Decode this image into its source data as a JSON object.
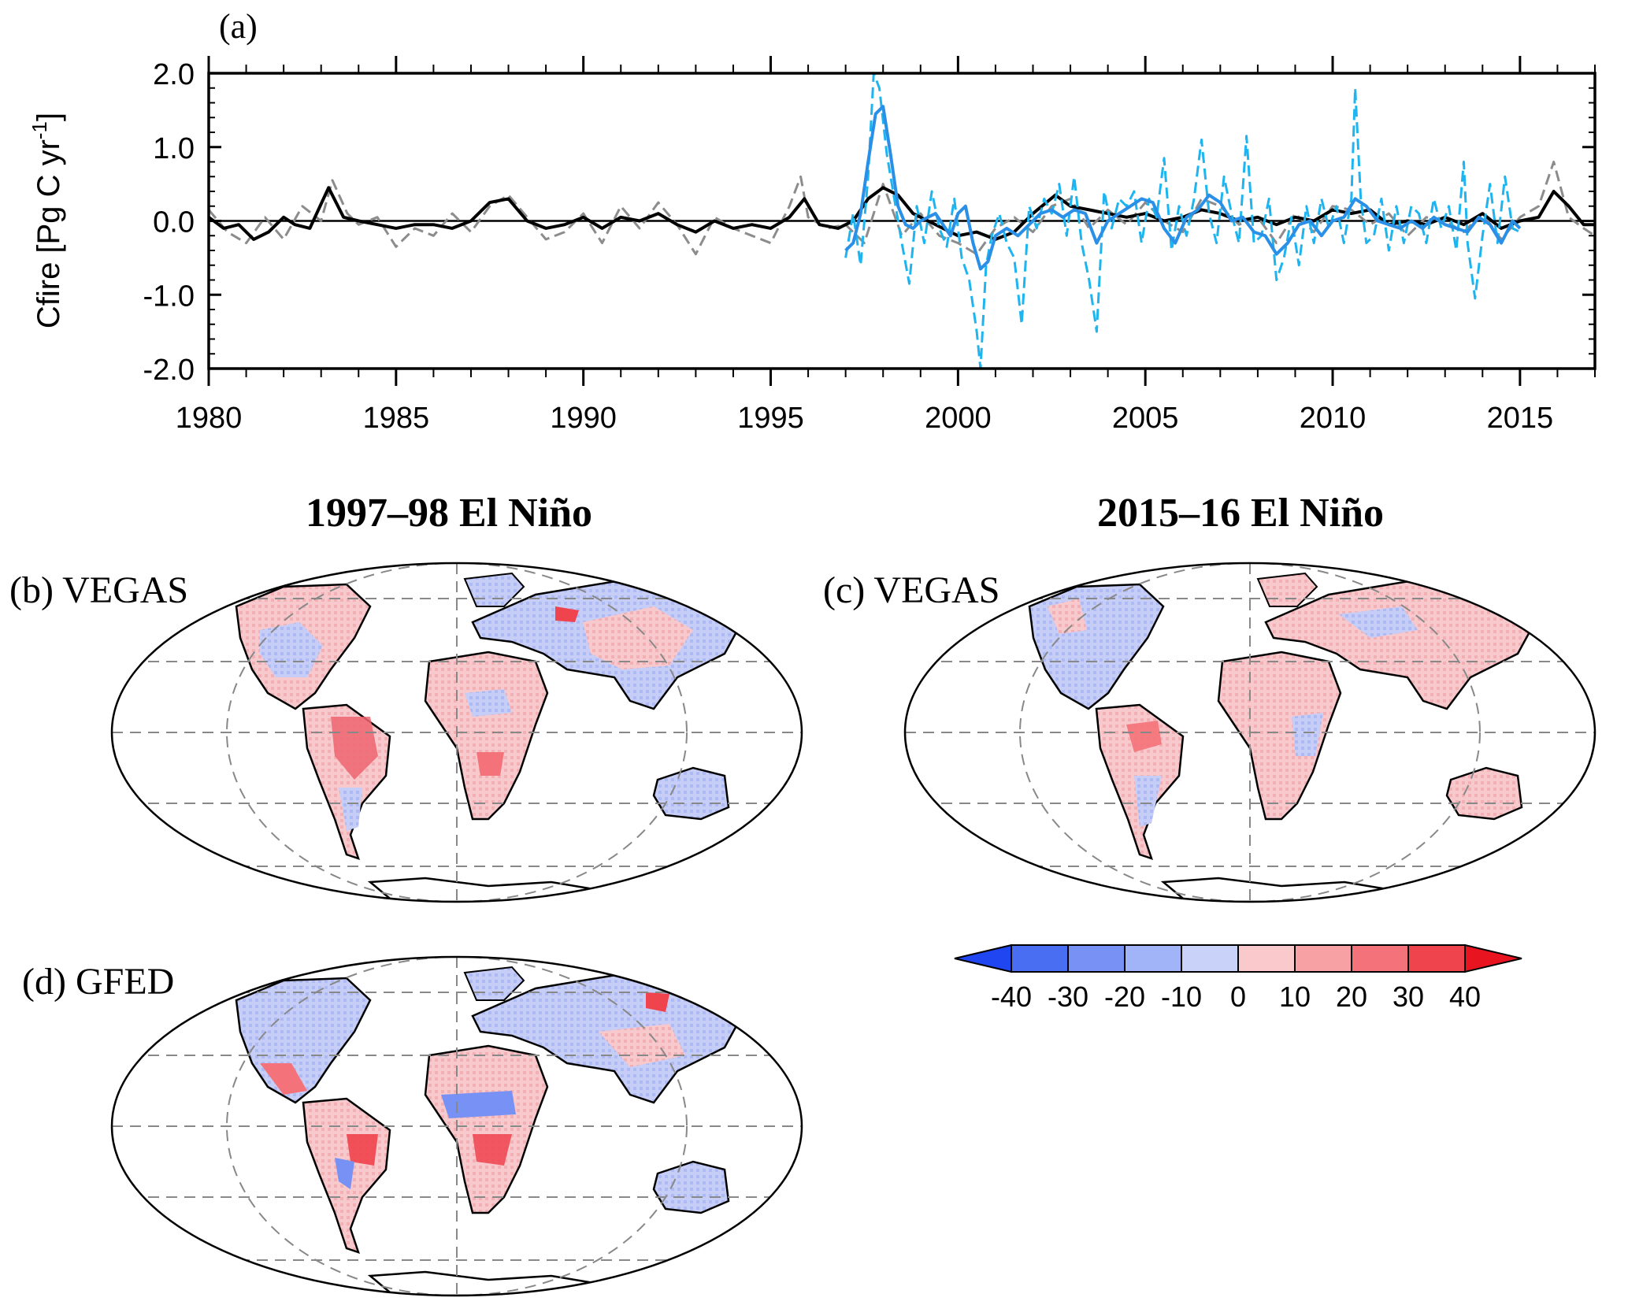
{
  "chart_data": [
    {
      "type": "line",
      "panel_label": "(a)",
      "ylabel": "Cfire [Pg C yr",
      "ylabel_sup": "-1",
      "ylabel_end": "]",
      "xlim": [
        1980,
        2017
      ],
      "ylim": [
        -2.0,
        2.0
      ],
      "xticks": [
        "1980",
        "1985",
        "1990",
        "1995",
        "2000",
        "2005",
        "2010",
        "2015"
      ],
      "yticks": [
        "2.0",
        "1.0",
        "0.0",
        "-1.0",
        "-2.0"
      ],
      "zero_line": true,
      "series": [
        {
          "color": "#8c8c8c",
          "dash": true,
          "width": 3,
          "x": [
            1980.0,
            1980.5,
            1981.0,
            1981.5,
            1982.0,
            1982.5,
            1983.0,
            1983.3,
            1983.7,
            1984.0,
            1984.5,
            1985.0,
            1985.5,
            1986.0,
            1986.5,
            1987.0,
            1987.5,
            1988.0,
            1988.5,
            1989.0,
            1989.5,
            1990.0,
            1990.5,
            1991.0,
            1991.5,
            1992.0,
            1992.5,
            1993.0,
            1993.5,
            1994.0,
            1994.5,
            1995.0,
            1995.5,
            1995.8,
            1996.0,
            1996.5,
            1997.0,
            1997.5,
            1998.0,
            1998.5,
            1999.0,
            1999.5,
            2000.0,
            2000.5,
            2001.0,
            2001.5,
            2002.0,
            2002.5,
            2003.0,
            2003.5,
            2004.0,
            2004.5,
            2005.0,
            2005.5,
            2006.0,
            2006.5,
            2007.0,
            2007.5,
            2008.0,
            2008.5,
            2009.0,
            2009.5,
            2010.0,
            2010.5,
            2011.0,
            2011.5,
            2012.0,
            2012.5,
            2013.0,
            2013.5,
            2014.0,
            2014.5,
            2015.0,
            2015.5,
            2015.9,
            2016.3,
            2016.7,
            2017.0
          ],
          "y": [
            0.15,
            -0.15,
            -0.3,
            0.05,
            -0.25,
            0.2,
            0.0,
            0.55,
            0.1,
            -0.05,
            0.05,
            -0.35,
            -0.1,
            -0.2,
            0.1,
            -0.15,
            0.2,
            0.35,
            0.05,
            -0.25,
            -0.15,
            0.1,
            -0.3,
            0.2,
            -0.1,
            0.25,
            -0.05,
            -0.45,
            0.05,
            -0.1,
            -0.2,
            -0.3,
            0.2,
            0.6,
            0.05,
            -0.1,
            -0.05,
            -0.3,
            0.5,
            -0.2,
            0.1,
            -0.2,
            -0.3,
            -0.45,
            -0.1,
            0.05,
            -0.15,
            0.2,
            0.3,
            -0.1,
            0.15,
            -0.05,
            0.25,
            0.0,
            -0.15,
            0.3,
            0.2,
            -0.05,
            0.05,
            -0.3,
            0.1,
            -0.15,
            0.2,
            0.15,
            -0.05,
            0.1,
            -0.2,
            0.05,
            0.0,
            -0.15,
            0.1,
            -0.25,
            0.05,
            0.2,
            0.8,
            0.05,
            -0.1,
            -0.2
          ]
        },
        {
          "color": "#000000",
          "dash": false,
          "width": 4,
          "x": [
            1980.0,
            1980.4,
            1980.8,
            1981.2,
            1981.6,
            1982.0,
            1982.3,
            1982.7,
            1983.2,
            1983.6,
            1984.0,
            1984.5,
            1985.0,
            1985.5,
            1986.0,
            1986.5,
            1987.0,
            1987.5,
            1988.0,
            1988.5,
            1989.0,
            1989.5,
            1990.0,
            1990.5,
            1991.0,
            1991.5,
            1992.0,
            1992.5,
            1993.0,
            1993.5,
            1994.0,
            1994.5,
            1995.0,
            1995.5,
            1995.9,
            1996.3,
            1996.8,
            1997.2,
            1997.6,
            1998.0,
            1998.4,
            1998.8,
            1999.2,
            1999.6,
            2000.0,
            2000.5,
            2001.0,
            2001.5,
            2002.0,
            2002.6,
            2003.0,
            2003.5,
            2004.0,
            2004.5,
            2005.0,
            2005.5,
            2006.0,
            2006.5,
            2007.0,
            2007.5,
            2008.0,
            2008.5,
            2009.0,
            2009.5,
            2010.0,
            2010.5,
            2011.0,
            2011.5,
            2012.0,
            2012.5,
            2013.0,
            2013.5,
            2014.0,
            2014.5,
            2015.0,
            2015.5,
            2015.9,
            2016.3,
            2016.7,
            2017.0
          ],
          "y": [
            0.05,
            -0.1,
            -0.05,
            -0.25,
            -0.15,
            0.05,
            -0.05,
            -0.1,
            0.45,
            0.05,
            0.0,
            -0.05,
            -0.1,
            -0.05,
            -0.05,
            -0.1,
            0.0,
            0.25,
            0.3,
            0.0,
            -0.1,
            -0.05,
            0.05,
            -0.1,
            0.05,
            0.0,
            0.1,
            -0.05,
            -0.15,
            0.0,
            -0.1,
            -0.05,
            -0.1,
            0.05,
            0.3,
            -0.05,
            -0.1,
            0.0,
            0.3,
            0.45,
            0.35,
            0.1,
            0.0,
            -0.1,
            -0.2,
            -0.15,
            -0.25,
            -0.15,
            0.1,
            0.35,
            0.2,
            0.15,
            0.1,
            0.05,
            0.1,
            0.0,
            0.05,
            0.15,
            0.1,
            0.0,
            0.05,
            -0.05,
            0.05,
            0.0,
            0.15,
            0.1,
            0.15,
            -0.05,
            0.0,
            -0.05,
            0.05,
            -0.05,
            0.1,
            -0.1,
            0.0,
            0.05,
            0.4,
            0.2,
            -0.05,
            -0.05
          ]
        },
        {
          "color": "#1eb4f0",
          "dash": true,
          "width": 3,
          "x": [
            1997.0,
            1997.2,
            1997.4,
            1997.6,
            1997.75,
            1997.9,
            1998.1,
            1998.3,
            1998.5,
            1998.7,
            1998.9,
            1999.1,
            1999.3,
            1999.5,
            1999.7,
            1999.9,
            2000.1,
            2000.3,
            2000.5,
            2000.6,
            2000.75,
            2000.9,
            2001.1,
            2001.3,
            2001.5,
            2001.7,
            2001.9,
            2002.1,
            2002.3,
            2002.5,
            2002.7,
            2002.9,
            2003.1,
            2003.3,
            2003.5,
            2003.7,
            2003.9,
            2004.1,
            2004.3,
            2004.5,
            2004.7,
            2004.9,
            2005.1,
            2005.3,
            2005.5,
            2005.7,
            2005.9,
            2006.1,
            2006.3,
            2006.5,
            2006.7,
            2006.9,
            2007.1,
            2007.3,
            2007.5,
            2007.7,
            2007.9,
            2008.1,
            2008.3,
            2008.5,
            2008.7,
            2008.9,
            2009.1,
            2009.3,
            2009.5,
            2009.7,
            2009.9,
            2010.1,
            2010.3,
            2010.5,
            2010.6,
            2010.75,
            2010.9,
            2011.1,
            2011.3,
            2011.5,
            2011.7,
            2011.9,
            2012.1,
            2012.3,
            2012.5,
            2012.7,
            2012.9,
            2013.1,
            2013.3,
            2013.5,
            2013.6,
            2013.8,
            2014.0,
            2014.2,
            2014.4,
            2014.6,
            2014.8,
            2015.0
          ],
          "y": [
            -0.5,
            0.1,
            -0.6,
            0.6,
            2.0,
            1.8,
            0.9,
            0.3,
            -0.3,
            -0.85,
            0.2,
            -0.3,
            0.4,
            -0.1,
            -0.35,
            0.3,
            -0.5,
            -0.8,
            -1.5,
            -2.0,
            -0.6,
            -0.2,
            0.1,
            -0.3,
            -0.5,
            -1.4,
            0.2,
            -0.1,
            0.3,
            0.1,
            0.5,
            -0.2,
            0.6,
            -0.3,
            -0.8,
            -1.5,
            0.4,
            -0.1,
            0.3,
            0.2,
            0.4,
            -0.3,
            0.3,
            0.05,
            0.85,
            -0.4,
            0.2,
            -0.2,
            0.3,
            1.1,
            0.1,
            -0.3,
            0.6,
            0.1,
            -0.3,
            1.15,
            -0.3,
            -0.2,
            0.3,
            -0.8,
            -0.5,
            0.05,
            -0.6,
            0.2,
            -0.3,
            0.3,
            -0.1,
            0.2,
            -0.3,
            0.3,
            1.8,
            0.3,
            -0.3,
            -0.2,
            0.3,
            -0.4,
            0.2,
            -0.3,
            0.2,
            0.1,
            -0.3,
            0.3,
            -0.1,
            0.2,
            -0.4,
            0.8,
            -0.3,
            -1.05,
            -0.2,
            0.5,
            -0.3,
            0.6,
            -0.1,
            -0.15
          ]
        },
        {
          "color": "#2a8fe6",
          "dash": false,
          "width": 4,
          "x": [
            1997.0,
            1997.2,
            1997.4,
            1997.6,
            1997.8,
            1998.0,
            1998.2,
            1998.4,
            1998.6,
            1998.8,
            1999.0,
            1999.2,
            1999.4,
            1999.6,
            1999.8,
            2000.0,
            2000.2,
            2000.4,
            2000.6,
            2000.8,
            2001.0,
            2001.3,
            2001.6,
            2001.9,
            2002.2,
            2002.5,
            2002.8,
            2003.1,
            2003.4,
            2003.7,
            2004.0,
            2004.3,
            2004.6,
            2004.9,
            2005.2,
            2005.5,
            2005.8,
            2006.1,
            2006.4,
            2006.7,
            2007.0,
            2007.3,
            2007.6,
            2007.9,
            2008.2,
            2008.5,
            2008.8,
            2009.1,
            2009.4,
            2009.7,
            2010.0,
            2010.3,
            2010.6,
            2010.9,
            2011.2,
            2011.5,
            2011.8,
            2012.1,
            2012.4,
            2012.7,
            2013.0,
            2013.3,
            2013.6,
            2013.9,
            2014.2,
            2014.5,
            2014.8,
            2015.0
          ],
          "y": [
            -0.4,
            -0.3,
            0.1,
            0.8,
            1.45,
            1.55,
            0.9,
            0.2,
            -0.05,
            -0.1,
            0.0,
            0.05,
            0.1,
            -0.05,
            -0.2,
            0.1,
            0.2,
            -0.3,
            -0.65,
            -0.55,
            -0.2,
            -0.1,
            -0.2,
            -0.05,
            0.1,
            0.15,
            0.05,
            0.15,
            0.1,
            -0.3,
            0.0,
            0.1,
            0.2,
            0.3,
            0.25,
            -0.1,
            -0.3,
            0.05,
            0.15,
            0.35,
            0.25,
            0.0,
            0.05,
            -0.15,
            -0.2,
            -0.45,
            -0.3,
            -0.05,
            0.0,
            -0.2,
            0.0,
            0.05,
            0.3,
            0.2,
            0.0,
            -0.05,
            -0.1,
            0.0,
            -0.1,
            0.05,
            -0.05,
            -0.1,
            -0.15,
            0.05,
            -0.05,
            -0.3,
            0.0,
            -0.1
          ]
        }
      ]
    },
    {
      "type": "heatmap",
      "panel_label": "(b) VEGAS",
      "column_title": "1997–98 El Niño",
      "projection": "mollweide"
    },
    {
      "type": "heatmap",
      "panel_label": "(c) VEGAS",
      "column_title": "2015–16 El Niño",
      "projection": "mollweide"
    },
    {
      "type": "heatmap",
      "panel_label": "(d) GFED",
      "projection": "mollweide"
    },
    {
      "type": "colorbar",
      "ticks": [
        "-40",
        "-30",
        "-20",
        "-10",
        "0",
        "10",
        "20",
        "30",
        "40"
      ],
      "colors": [
        "#1f46f0",
        "#4a6ef2",
        "#7891f5",
        "#a1b4f7",
        "#c9d3fa",
        "#fac9cc",
        "#f7a1a5",
        "#f47279",
        "#ef434d",
        "#e8141f"
      ]
    }
  ]
}
